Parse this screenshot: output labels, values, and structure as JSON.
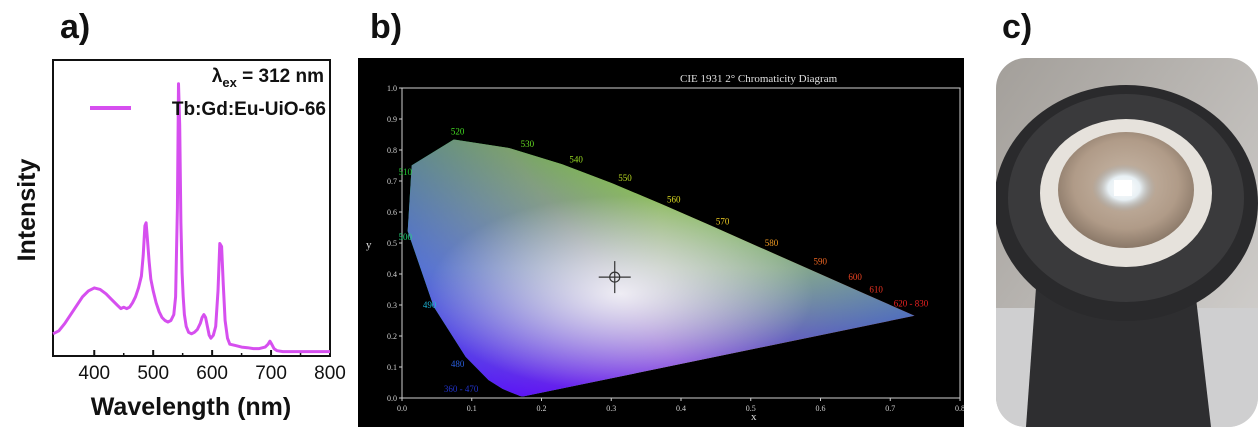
{
  "panels": {
    "a": {
      "label": "a)"
    },
    "b": {
      "label": "b)"
    },
    "c": {
      "label": "c)"
    }
  },
  "chart_data": [
    {
      "type": "line",
      "panel": "a",
      "xlabel": "Wavelength (nm)",
      "ylabel": "Intensity",
      "xlim": [
        330,
        800
      ],
      "ylim": [
        0,
        1.0
      ],
      "xticks": [
        400,
        500,
        600,
        700,
        800
      ],
      "annotation": {
        "prefix": "λ",
        "subscript": "ex",
        "suffix": " = 312 nm"
      },
      "legend_position": "top-right",
      "series": [
        {
          "name": "Tb:Gd:Eu-UiO-66",
          "color": "#d64fef",
          "x": [
            330,
            340,
            350,
            360,
            370,
            380,
            390,
            400,
            410,
            420,
            430,
            440,
            445,
            450,
            455,
            460,
            465,
            470,
            475,
            480,
            483,
            486,
            488,
            490,
            493,
            496,
            500,
            505,
            510,
            515,
            520,
            525,
            530,
            535,
            538,
            541,
            543,
            545,
            547,
            549,
            551,
            553,
            556,
            560,
            565,
            570,
            575,
            580,
            583,
            586,
            589,
            592,
            595,
            598,
            602,
            606,
            610,
            613,
            616,
            619,
            622,
            626,
            630,
            640,
            650,
            660,
            670,
            680,
            690,
            695,
            698,
            701,
            705,
            710,
            720,
            740,
            760,
            780,
            800
          ],
          "y": [
            0.075,
            0.085,
            0.11,
            0.14,
            0.17,
            0.2,
            0.22,
            0.23,
            0.225,
            0.21,
            0.19,
            0.17,
            0.16,
            0.165,
            0.16,
            0.165,
            0.18,
            0.2,
            0.23,
            0.27,
            0.34,
            0.44,
            0.45,
            0.4,
            0.32,
            0.26,
            0.22,
            0.18,
            0.15,
            0.13,
            0.12,
            0.115,
            0.12,
            0.14,
            0.2,
            0.5,
            0.92,
            0.78,
            0.45,
            0.28,
            0.2,
            0.14,
            0.1,
            0.08,
            0.075,
            0.08,
            0.09,
            0.11,
            0.13,
            0.14,
            0.13,
            0.1,
            0.07,
            0.06,
            0.07,
            0.1,
            0.22,
            0.38,
            0.37,
            0.24,
            0.12,
            0.06,
            0.04,
            0.035,
            0.03,
            0.028,
            0.025,
            0.025,
            0.03,
            0.04,
            0.05,
            0.04,
            0.025,
            0.018,
            0.015,
            0.015,
            0.015,
            0.015,
            0.015
          ]
        }
      ]
    },
    {
      "type": "scatter",
      "panel": "b",
      "title": "CIE 1931 2° Chromaticity Diagram",
      "xlabel": "x",
      "ylabel": "y",
      "xlim": [
        0.0,
        0.8
      ],
      "ylim": [
        0.0,
        1.0
      ],
      "xticks": [
        "0.0",
        "0.1",
        "0.2",
        "0.3",
        "0.4",
        "0.5",
        "0.6",
        "0.7",
        "0.8"
      ],
      "yticks": [
        "0.0",
        "0.1",
        "0.2",
        "0.3",
        "0.4",
        "0.5",
        "0.6",
        "0.7",
        "0.8",
        "0.9",
        "1.0"
      ],
      "background": "#000000",
      "point": {
        "x": 0.305,
        "y": 0.39
      },
      "wavelength_labels": [
        {
          "text": "360 - 470",
          "color": "#2233cc"
        },
        {
          "text": "480",
          "color": "#2a5fe0"
        },
        {
          "text": "490",
          "color": "#1fb4d6"
        },
        {
          "text": "500",
          "color": "#22d47a"
        },
        {
          "text": "510",
          "color": "#22cc33"
        },
        {
          "text": "520",
          "color": "#44dd22"
        },
        {
          "text": "530",
          "color": "#66dd22"
        },
        {
          "text": "540",
          "color": "#99dd22"
        },
        {
          "text": "550",
          "color": "#bbdd22"
        },
        {
          "text": "560",
          "color": "#dddd22"
        },
        {
          "text": "570",
          "color": "#eecc22"
        },
        {
          "text": "580",
          "color": "#ee9922"
        },
        {
          "text": "590",
          "color": "#ee6622"
        },
        {
          "text": "600",
          "color": "#ee4422"
        },
        {
          "text": "610",
          "color": "#ee3322"
        },
        {
          "text": "620 - 830",
          "color": "#ee2222"
        }
      ],
      "grid": false
    }
  ]
}
